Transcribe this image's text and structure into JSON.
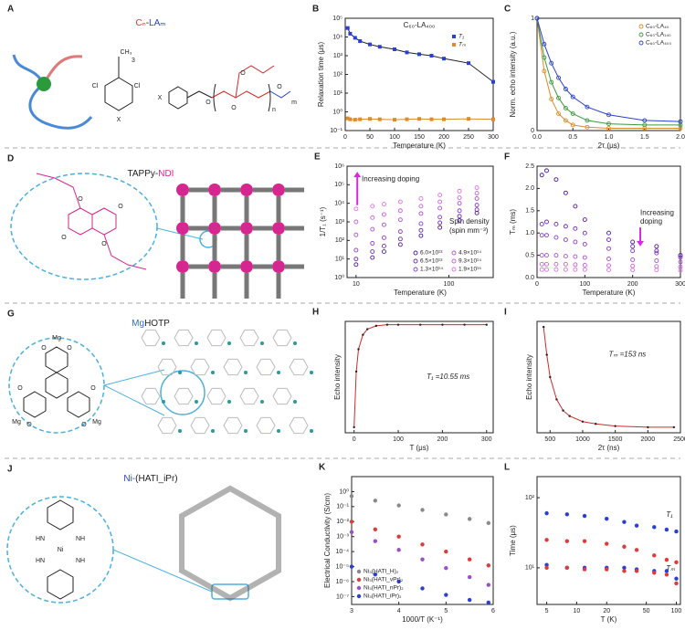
{
  "structures": [
    {
      "panel": "A",
      "title_parts": [
        {
          "text": "Cₙ",
          "color": "#e0302a"
        },
        {
          "text": "-",
          "color": "#222222"
        },
        {
          "text": "LAₘ",
          "color": "#2a3fd4"
        }
      ],
      "labels": [
        "CH₃",
        "3",
        "Cl",
        "Cl",
        "X",
        "X",
        "O",
        "O",
        "O",
        "n",
        "O",
        "m"
      ]
    },
    {
      "panel": "D",
      "title_parts": [
        {
          "text": "TAPPy-",
          "color": "#222222"
        },
        {
          "text": "NDI",
          "color": "#d6268f"
        }
      ],
      "labels": [
        "O",
        "O",
        "O",
        "O"
      ]
    },
    {
      "panel": "G",
      "title_parts": [
        {
          "text": "Mg",
          "color": "#2a6fc4"
        },
        {
          "text": "HOTP",
          "color": "#222222"
        }
      ],
      "labels": [
        "Mg",
        "Mg",
        "Mg",
        "O",
        "O",
        "O",
        "O",
        "O",
        "O"
      ]
    },
    {
      "panel": "J",
      "title_parts": [
        {
          "text": "Ni-",
          "color": "#2a3fd4"
        },
        {
          "text": "(HATI_iPr)",
          "color": "#222222"
        }
      ],
      "labels": [
        "HN",
        "NH",
        "Ni",
        "HN",
        "NH"
      ]
    }
  ],
  "chart_data": [
    {
      "panel": "B",
      "type": "line",
      "title": "C₆₀-LA₄₀₀",
      "xlabel": "Temperature (K)",
      "ylabel": "Relaxation time (μs)",
      "x": [
        5,
        10,
        20,
        30,
        50,
        70,
        100,
        125,
        150,
        175,
        200,
        250,
        300
      ],
      "xlim": [
        0,
        300
      ],
      "xticks": [
        0,
        50,
        100,
        150,
        200,
        250,
        300
      ],
      "ylog": true,
      "ylim": [
        0.1,
        100000
      ],
      "yticks": [
        {
          "value": 0.1,
          "label": "10⁻¹"
        },
        {
          "value": 1,
          "label": "10⁰"
        },
        {
          "value": 10,
          "label": "10¹"
        },
        {
          "value": 100,
          "label": "10²"
        },
        {
          "value": 1000,
          "label": "10³"
        },
        {
          "value": 10000,
          "label": "10⁴"
        },
        {
          "value": 100000,
          "label": "10⁵"
        }
      ],
      "legend": "upper right",
      "series": [
        {
          "name": "T₁",
          "color": "#2a3fd4",
          "line_color": "#222222",
          "marker": "square",
          "values": [
            30000,
            15000,
            9000,
            6000,
            4000,
            3000,
            2200,
            1500,
            1200,
            1000,
            700,
            400,
            40
          ]
        },
        {
          "name": "Tₘ",
          "color": "#e08a2a",
          "line_color": "#e08a2a",
          "marker": "square",
          "values": [
            0.45,
            0.4,
            0.38,
            0.4,
            0.42,
            0.4,
            0.38,
            0.4,
            0.42,
            0.4,
            0.4,
            0.42,
            0.4
          ]
        }
      ]
    },
    {
      "panel": "C",
      "type": "line",
      "xlabel": "2τ (μs)",
      "ylabel": "Norm. echo intensity (a.u.)",
      "x": [
        0,
        0.1,
        0.2,
        0.3,
        0.4,
        0.5,
        0.7,
        1.0,
        1.5,
        2.0
      ],
      "xlim": [
        0,
        2
      ],
      "xticks": [
        {
          "value": 0,
          "label": "0.0"
        },
        {
          "value": 0.5,
          "label": "0.5"
        },
        {
          "value": 1,
          "label": "1.0"
        },
        {
          "value": 1.5,
          "label": "1.5"
        },
        {
          "value": 2,
          "label": "2.0"
        }
      ],
      "ylim": [
        0,
        1
      ],
      "yticks": [
        0,
        1
      ],
      "legend": "upper right",
      "series": [
        {
          "name": "C₆₀-LA₄₀",
          "color": "#e08a2a",
          "line_color": "#e08a2a",
          "marker": "open",
          "values": [
            1,
            0.53,
            0.28,
            0.15,
            0.09,
            0.05,
            0.03,
            0.02,
            0.02,
            0.02
          ]
        },
        {
          "name": "C₆₀-LA₁₄₀",
          "color": "#3c9a3c",
          "line_color": "#3c9a3c",
          "marker": "open",
          "values": [
            1,
            0.65,
            0.43,
            0.29,
            0.2,
            0.15,
            0.09,
            0.06,
            0.05,
            0.05
          ]
        },
        {
          "name": "C₆₀-LA₄₀₀",
          "color": "#2a3fd4",
          "line_color": "#2a3fd4",
          "marker": "open",
          "values": [
            1,
            0.77,
            0.6,
            0.47,
            0.37,
            0.3,
            0.21,
            0.14,
            0.09,
            0.08
          ]
        }
      ]
    },
    {
      "panel": "E",
      "type": "scatter",
      "xlabel": "Temperature (K)",
      "ylabel": "1/T₁ (s⁻¹)",
      "annotations": [
        "Increasing doping",
        "Spin density",
        "(spin mm⁻³)"
      ],
      "x": [
        10,
        15,
        20,
        30,
        50,
        80,
        130,
        200
      ],
      "xlog": true,
      "xlim": [
        8,
        300
      ],
      "xticks": [
        10,
        100
      ],
      "ylog": true,
      "ylim": [
        1,
        1000000
      ],
      "yticks": [
        {
          "value": 1,
          "label": "10⁰"
        },
        {
          "value": 10,
          "label": "10¹"
        },
        {
          "value": 100,
          "label": "10²"
        },
        {
          "value": 1000,
          "label": "10³"
        },
        {
          "value": 10000,
          "label": "10⁴"
        },
        {
          "value": 100000,
          "label": "10⁵"
        },
        {
          "value": 1000000,
          "label": "10⁶"
        }
      ],
      "legend": "lower right",
      "legend_columns": 2,
      "series": [
        {
          "name": "6.0×10¹³",
          "color": "#4b1a9e",
          "marker": "open",
          "values": [
            5,
            12,
            25,
            60,
            180,
            500,
            1200,
            3000
          ]
        },
        {
          "name": "6.5×10¹³",
          "color": "#6a2bb8",
          "marker": "open",
          "values": [
            10,
            25,
            50,
            120,
            350,
            900,
            2000,
            4500
          ]
        },
        {
          "name": "1.3×10¹⁴",
          "color": "#8a3ccc",
          "marker": "open",
          "values": [
            30,
            70,
            140,
            300,
            800,
            1800,
            4000,
            8000
          ]
        },
        {
          "name": "4.9×10¹⁴",
          "color": "#a94fd8",
          "marker": "open",
          "values": [
            200,
            400,
            700,
            1300,
            2800,
            5500,
            10000,
            18000
          ]
        },
        {
          "name": "9.3×10¹⁴",
          "color": "#c95fe0",
          "marker": "open",
          "values": [
            1000,
            1700,
            2500,
            4000,
            7000,
            12000,
            20000,
            35000
          ]
        },
        {
          "name": "1.9×10¹⁵",
          "color": "#e070e6",
          "marker": "open",
          "values": [
            5000,
            7000,
            9000,
            12000,
            18000,
            28000,
            45000,
            70000
          ]
        }
      ]
    },
    {
      "panel": "F",
      "type": "scatter",
      "xlabel": "Temperature (K)",
      "ylabel": "Tₘ (ms)",
      "annotations": [
        "Increasing",
        "doping"
      ],
      "x": [
        10,
        20,
        40,
        60,
        80,
        100,
        150,
        200,
        250,
        300
      ],
      "xlim": [
        0,
        300
      ],
      "xticks": [
        0,
        100,
        200,
        300
      ],
      "ylim": [
        0,
        2.5
      ],
      "yticks": [
        {
          "value": 0,
          "label": "0.0"
        },
        {
          "value": 0.5,
          "label": "0.5"
        },
        {
          "value": 1,
          "label": "1.0"
        },
        {
          "value": 1.5,
          "label": "1.5"
        },
        {
          "value": 2,
          "label": "2.0"
        },
        {
          "value": 2.5,
          "label": "2.5"
        }
      ],
      "series": [
        {
          "color": "#4b1a9e",
          "marker": "open",
          "values": [
            2.3,
            2.4,
            2.2,
            1.9,
            1.6,
            1.3,
            1.0,
            0.8,
            0.7,
            0.5
          ]
        },
        {
          "color": "#6a2bb8",
          "marker": "open",
          "values": [
            1.2,
            1.25,
            1.2,
            1.15,
            1.1,
            1.0,
            0.85,
            0.7,
            0.6,
            0.5
          ]
        },
        {
          "color": "#8a3ccc",
          "marker": "open",
          "values": [
            0.95,
            0.95,
            0.9,
            0.85,
            0.8,
            0.75,
            0.65,
            0.6,
            0.55,
            0.45
          ]
        },
        {
          "color": "#a94fd8",
          "marker": "open",
          "values": [
            0.5,
            0.5,
            0.5,
            0.48,
            0.47,
            0.45,
            0.42,
            0.4,
            0.38,
            0.35
          ]
        },
        {
          "color": "#c95fe0",
          "marker": "open",
          "values": [
            0.3,
            0.3,
            0.3,
            0.3,
            0.29,
            0.28,
            0.27,
            0.26,
            0.25,
            0.24
          ]
        },
        {
          "color": "#e070e6",
          "marker": "open",
          "values": [
            0.18,
            0.18,
            0.18,
            0.18,
            0.18,
            0.18,
            0.17,
            0.17,
            0.17,
            0.16
          ]
        }
      ]
    },
    {
      "panel": "H",
      "type": "line",
      "xlabel": "T (μs)",
      "ylabel": "Echo intensity",
      "annotations": [
        "T₁ =10.55 ms"
      ],
      "x": [
        0,
        5,
        10,
        20,
        30,
        50,
        75,
        100,
        150,
        200,
        250,
        300
      ],
      "xlim": [
        -20,
        315
      ],
      "xticks": [
        0,
        100,
        200,
        300
      ],
      "ylim": [
        0,
        1
      ],
      "series": [
        {
          "color": "#222222",
          "line_color": "#d42a2a",
          "marker": "dot",
          "values": [
            0.05,
            0.55,
            0.75,
            0.88,
            0.93,
            0.96,
            0.97,
            0.97,
            0.97,
            0.97,
            0.97,
            0.97
          ]
        }
      ]
    },
    {
      "panel": "I",
      "type": "line",
      "xlabel": "2τ (ns)",
      "ylabel": "Echo intensity",
      "annotations": [
        "Tₘ =153 ns"
      ],
      "x": [
        400,
        450,
        500,
        600,
        700,
        800,
        1000,
        1200,
        1500,
        2000,
        2400
      ],
      "xlim": [
        300,
        2500
      ],
      "xticks": [
        500,
        1000,
        1500,
        2000,
        2500
      ],
      "ylim": [
        0,
        1
      ],
      "series": [
        {
          "color": "#222222",
          "line_color": "#d42a2a",
          "marker": "dot",
          "values": [
            0.95,
            0.7,
            0.5,
            0.3,
            0.2,
            0.15,
            0.1,
            0.08,
            0.06,
            0.05,
            0.05
          ]
        }
      ]
    },
    {
      "panel": "K",
      "type": "scatter",
      "xlabel": "1000/T (K⁻¹)",
      "ylabel": "Electrical Conductivity (S/cm)",
      "x": [
        3,
        3.5,
        4,
        4.5,
        5,
        5.5,
        5.9
      ],
      "xlim": [
        3,
        6
      ],
      "xticks": [
        3,
        4,
        5,
        6
      ],
      "ylog": true,
      "ylim": [
        3e-08,
        10
      ],
      "yticks": [
        {
          "value": 1e-07,
          "label": "10⁻⁷"
        },
        {
          "value": 1e-06,
          "label": "10⁻⁶"
        },
        {
          "value": 1e-05,
          "label": "10⁻⁵"
        },
        {
          "value": 0.0001,
          "label": "10⁻⁴"
        },
        {
          "value": 0.001,
          "label": "10⁻³"
        },
        {
          "value": 0.01,
          "label": "10⁻²"
        },
        {
          "value": 0.1,
          "label": "10⁻¹"
        },
        {
          "value": 1,
          "label": "10⁰"
        }
      ],
      "legend": "lower left",
      "series": [
        {
          "name": "Ni₃(HATI_H)₂",
          "color": "#8a8a8a",
          "marker": "circle",
          "values": [
            0.5,
            0.25,
            0.12,
            0.06,
            0.03,
            0.015,
            0.008
          ]
        },
        {
          "name": "Ni₃(HATI_vPr)₂",
          "color": "#e03a3a",
          "marker": "circle",
          "values": [
            0.01,
            0.003,
            0.001,
            0.0003,
            0.0001,
            3e-05,
            1.2e-05
          ]
        },
        {
          "name": "Ni₃(HATI_nPr)₂",
          "color": "#9a4fc4",
          "marker": "circle",
          "values": [
            0.002,
            0.0005,
            0.00013,
            3e-05,
            8e-06,
            2e-06,
            6e-07
          ]
        },
        {
          "name": "Ni₃(HATI_iPr)₂",
          "color": "#2a3fd4",
          "marker": "circle",
          "values": [
            1e-05,
            3e-06,
            1e-06,
            3.5e-07,
            1.3e-07,
            6e-08,
            4e-08
          ]
        }
      ]
    },
    {
      "panel": "L",
      "type": "scatter",
      "xlabel": "T (K)",
      "ylabel": "Time (μs)",
      "annotations": [
        "T₁",
        "Tₘ"
      ],
      "x": [
        5,
        8,
        12,
        20,
        30,
        40,
        60,
        80,
        100
      ],
      "xlog": true,
      "xlim": [
        4,
        110
      ],
      "xticks": [
        5,
        10,
        20,
        50,
        100
      ],
      "ylog": true,
      "ylim": [
        3,
        200
      ],
      "yticks": [
        {
          "value": 10,
          "label": "10¹"
        },
        {
          "value": 100,
          "label": "10²"
        }
      ],
      "series": [
        {
          "color": "#2a3fd4",
          "marker": "circle",
          "values": [
            60,
            58,
            55,
            50,
            45,
            40,
            38,
            35,
            33
          ]
        },
        {
          "color": "#e03a3a",
          "marker": "circle",
          "values": [
            25,
            24,
            24,
            22,
            20,
            18,
            15,
            13,
            12
          ]
        },
        {
          "color": "#2a3fd4",
          "marker": "circle",
          "values": [
            11,
            10,
            10,
            10,
            10,
            9.5,
            9,
            9,
            7
          ]
        },
        {
          "color": "#e03a3a",
          "marker": "circle",
          "values": [
            10,
            10,
            9.5,
            9.5,
            9,
            9,
            8.5,
            8,
            6
          ]
        }
      ]
    }
  ]
}
